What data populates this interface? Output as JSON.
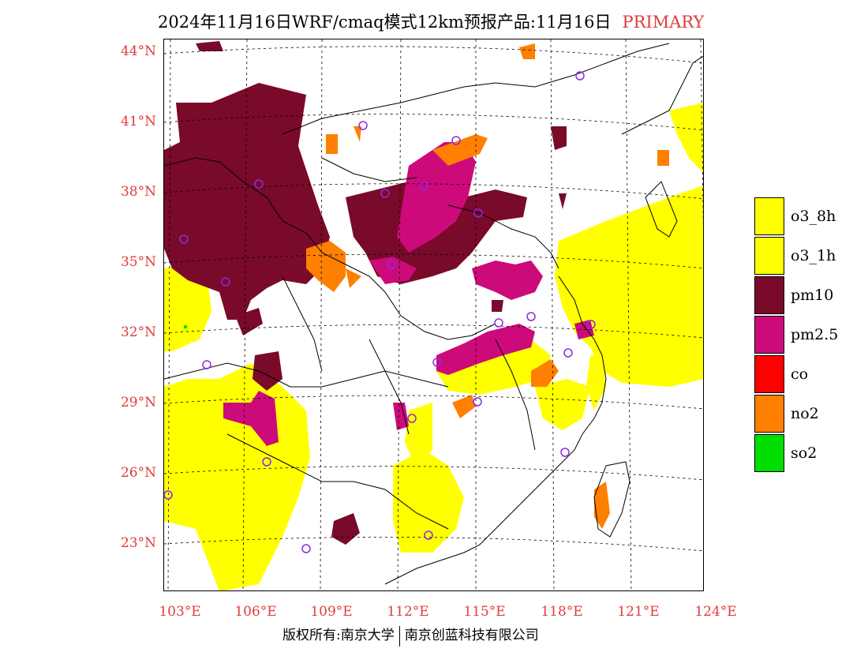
{
  "title": {
    "main": "2024年11月16日WRF/cmaq模式12km预报产品:11月16日",
    "tag": "PRIMARY"
  },
  "lat_labels": [
    "44°N",
    "41°N",
    "38°N",
    "35°N",
    "32°N",
    "29°N",
    "26°N",
    "23°N"
  ],
  "lon_labels": [
    "103°E",
    "106°E",
    "109°E",
    "112°E",
    "115°E",
    "118°E",
    "121°E",
    "124°E"
  ],
  "legend": [
    {
      "label": "o3_8h",
      "color": "#ffff00"
    },
    {
      "label": "o3_1h",
      "color": "#ffff00"
    },
    {
      "label": "pm10",
      "color": "#7a0a2a"
    },
    {
      "label": "pm2.5",
      "color": "#cc0a7a"
    },
    {
      "label": "co",
      "color": "#ff0000"
    },
    {
      "label": "no2",
      "color": "#ff7f00"
    },
    {
      "label": "so2",
      "color": "#00dd00"
    }
  ],
  "copyright": {
    "left": "版权所有:南京大学",
    "right": "南京创蓝科技有限公司"
  }
}
